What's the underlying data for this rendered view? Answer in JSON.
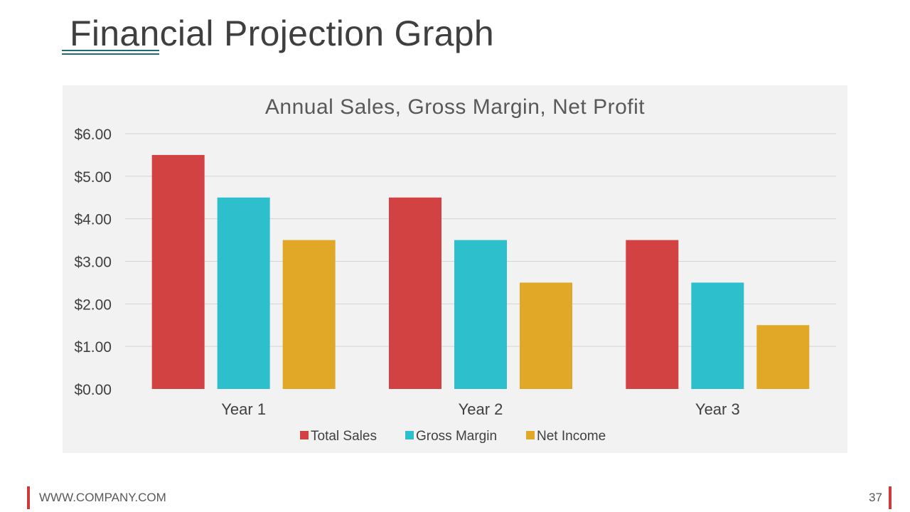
{
  "slide": {
    "title": "Financial Projection Graph",
    "footer_url": "WWW.COMPANY.COM",
    "page_number": "37"
  },
  "colors": {
    "total_sales": "#d24243",
    "gross_margin": "#2ebfcd",
    "net_income": "#e0a826",
    "accent_underline": "#1e6b7b",
    "footer_bar": "#cc3a3a"
  },
  "chart_data": {
    "type": "bar",
    "title": "Annual Sales, Gross Margin, Net Profit",
    "categories": [
      "Year 1",
      "Year 2",
      "Year 3"
    ],
    "series": [
      {
        "name": "Total Sales",
        "values": [
          5.5,
          4.5,
          3.5
        ]
      },
      {
        "name": "Gross Margin",
        "values": [
          4.5,
          3.5,
          2.5
        ]
      },
      {
        "name": "Net Income",
        "values": [
          3.5,
          2.5,
          1.5
        ]
      }
    ],
    "ylim": [
      0,
      6
    ],
    "yticks": [
      "$0.00",
      "$1.00",
      "$2.00",
      "$3.00",
      "$4.00",
      "$5.00",
      "$6.00"
    ],
    "grid": true,
    "legend": "bottom"
  }
}
